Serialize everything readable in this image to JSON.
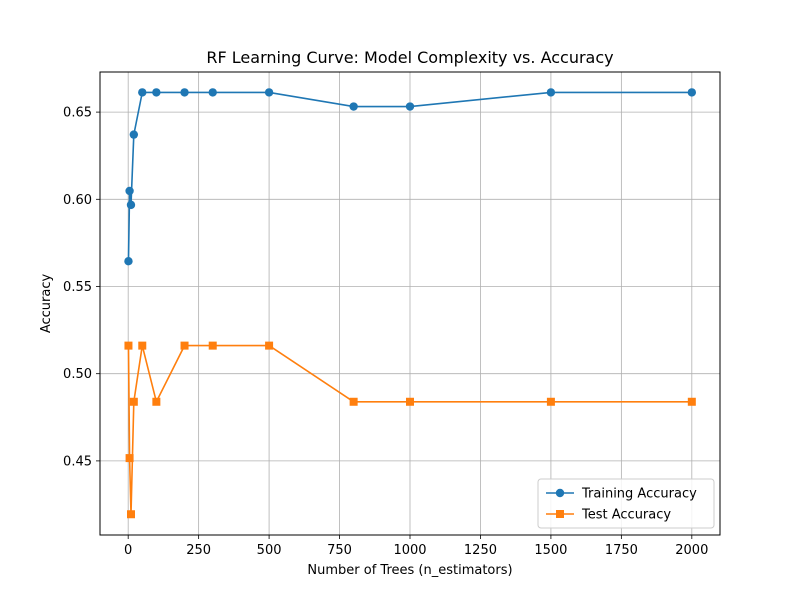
{
  "chart_data": {
    "type": "line",
    "title": "RF Learning Curve: Model Complexity vs. Accuracy",
    "xlabel": "Number of Trees (n_estimators)",
    "ylabel": "Accuracy",
    "xlim": [
      -100,
      2100
    ],
    "ylim": [
      0.4075,
      0.673
    ],
    "xticks": [
      0,
      250,
      500,
      750,
      1000,
      1250,
      1500,
      1750,
      2000
    ],
    "yticks": [
      0.45,
      0.5,
      0.55,
      0.6,
      0.65
    ],
    "ytick_labels": [
      "0.45",
      "0.50",
      "0.55",
      "0.60",
      "0.65"
    ],
    "grid": true,
    "legend_position": "bottom-right",
    "x": [
      1,
      5,
      10,
      20,
      50,
      100,
      200,
      300,
      500,
      800,
      1000,
      1500,
      2000
    ],
    "series": [
      {
        "name": "Training Accuracy",
        "color": "#1f77b4",
        "marker": "circle",
        "values": [
          0.5645,
          0.6048,
          0.5968,
          0.6371,
          0.6613,
          0.6613,
          0.6613,
          0.6613,
          0.6613,
          0.6532,
          0.6532,
          0.6613,
          0.6613
        ]
      },
      {
        "name": "Test Accuracy",
        "color": "#ff7f0e",
        "marker": "square",
        "values": [
          0.5161,
          0.4516,
          0.4194,
          0.4839,
          0.5161,
          0.4839,
          0.5161,
          0.5161,
          0.5161,
          0.4839,
          0.4839,
          0.4839,
          0.4839
        ]
      }
    ]
  }
}
